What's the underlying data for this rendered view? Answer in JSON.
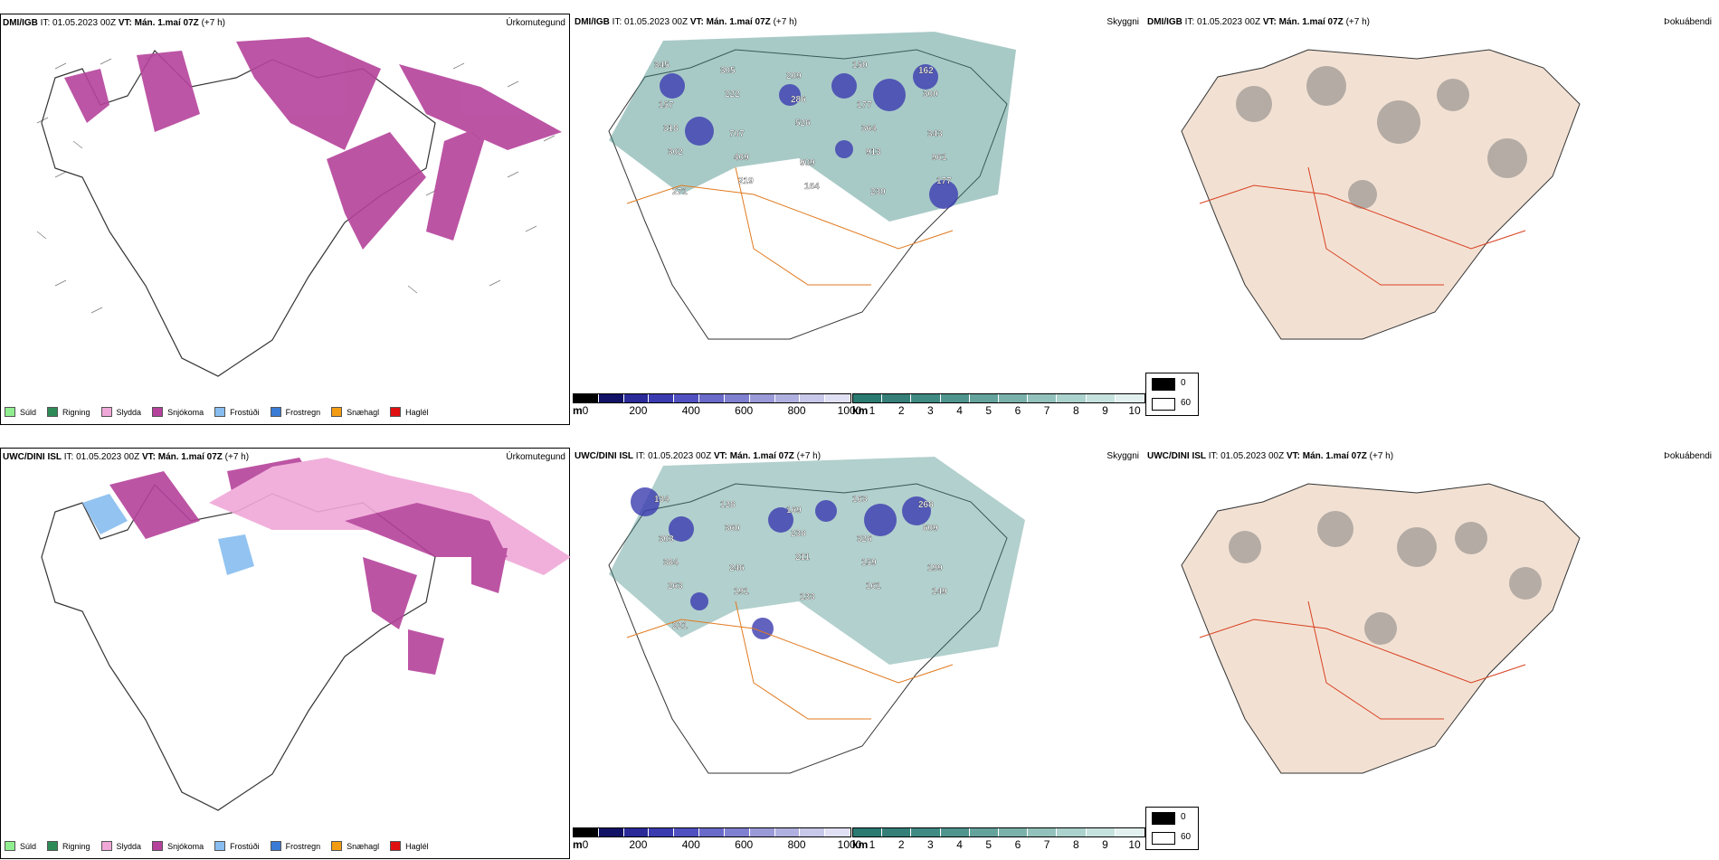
{
  "rows": [
    {
      "model": "DMI/IGB",
      "it_label": "IT: 01.05.2023 00Z",
      "vt_label": "VT: Mán. 1.maí 07Z",
      "lead": "(+7 h)",
      "precip_title": "Úrkomutegund",
      "vis_title": "Skyggni",
      "fog_title": "Þokuábendi"
    },
    {
      "model": "UWC/DINI ISL",
      "it_label": "IT: 01.05.2023 00Z",
      "vt_label": "VT: Mán. 1.maí 07Z",
      "lead": "(+7 h)",
      "precip_title": "Úrkomutegund",
      "vis_title": "Skyggni",
      "fog_title": "Þokuábendi"
    }
  ],
  "precip_legend": [
    {
      "label": "Súld",
      "color": "#90ee90"
    },
    {
      "label": "Rigning",
      "color": "#2e8b57"
    },
    {
      "label": "Slydda",
      "color": "#f0a8d8"
    },
    {
      "label": "Snjókoma",
      "color": "#b5429b"
    },
    {
      "label": "Frostúði",
      "color": "#87bdf0"
    },
    {
      "label": "Frostregn",
      "color": "#3a7bd5"
    },
    {
      "label": "Snæhagl",
      "color": "#f39c12"
    },
    {
      "label": "Haglél",
      "color": "#e01010"
    }
  ],
  "elevation_bar": {
    "unit": "m",
    "ticks": [
      "0",
      "200",
      "400",
      "600",
      "800",
      "1000"
    ],
    "colors": [
      "#000000",
      "#111166",
      "#2a2a99",
      "#3b3bb0",
      "#5050c0",
      "#6a6ac8",
      "#8080d0",
      "#9a9ad8",
      "#b0b0e0",
      "#c8c8ea",
      "#e0e0f4"
    ]
  },
  "visibility_bar": {
    "unit": "km",
    "ticks": [
      "1",
      "2",
      "3",
      "4",
      "5",
      "6",
      "7",
      "8",
      "9",
      "10"
    ],
    "colors": [
      "#2a7a72",
      "#357f78",
      "#3f8a83",
      "#4f958e",
      "#64a39c",
      "#7ab2ab",
      "#93c2bc",
      "#acd2cd",
      "#c6e2de",
      "#e2f1ef"
    ]
  },
  "fog_key": {
    "high": "0",
    "low": "60",
    "high_color": "#000000",
    "low_color": "#ffffff"
  },
  "dmi_vis_labels": [
    "345",
    "305",
    "209",
    "150",
    "162",
    "157",
    "222",
    "286",
    "177",
    "300",
    "318",
    "707",
    "526",
    "364",
    "343",
    "302",
    "409",
    "909",
    "913",
    "961",
    "271",
    "219",
    "164",
    "230",
    "177"
  ],
  "uwc_vis_labels": [
    "134",
    "128",
    "169",
    "163",
    "268",
    "303",
    "360",
    "238",
    "326",
    "609",
    "384",
    "246",
    "211",
    "159",
    "199",
    "263",
    "191",
    "133",
    "161",
    "149",
    "221"
  ]
}
